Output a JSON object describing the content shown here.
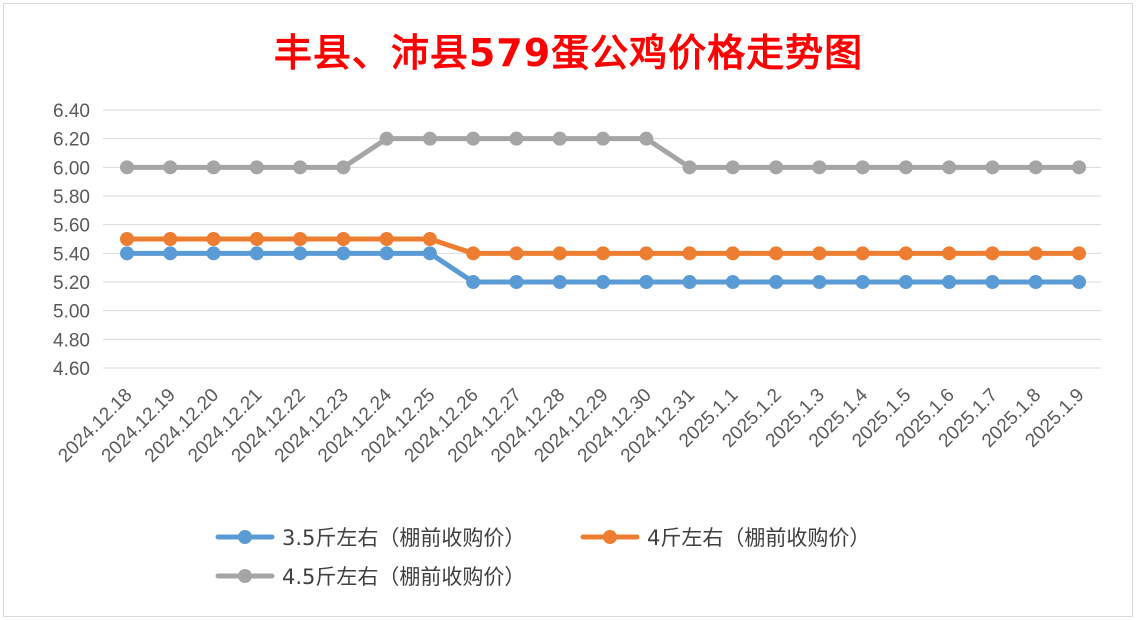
{
  "chart_data": {
    "type": "line",
    "title": "丰县、沛县579蛋公鸡价格走势图",
    "categories": [
      "2024.12.18",
      "2024.12.19",
      "2024.12.20",
      "2024.12.21",
      "2024.12.22",
      "2024.12.23",
      "2024.12.24",
      "2024.12.25",
      "2024.12.26",
      "2024.12.27",
      "2024.12.28",
      "2024.12.29",
      "2024.12.30",
      "2024.12.31",
      "2025.1.1",
      "2025.1.2",
      "2025.1.3",
      "2025.1.4",
      "2025.1.5",
      "2025.1.6",
      "2025.1.7",
      "2025.1.8",
      "2025.1.9"
    ],
    "series": [
      {
        "name": "3.5斤左右（棚前收购价）",
        "color": "#5b9bd5",
        "values": [
          5.4,
          5.4,
          5.4,
          5.4,
          5.4,
          5.4,
          5.4,
          5.4,
          5.2,
          5.2,
          5.2,
          5.2,
          5.2,
          5.2,
          5.2,
          5.2,
          5.2,
          5.2,
          5.2,
          5.2,
          5.2,
          5.2,
          5.2
        ]
      },
      {
        "name": "4斤左右（棚前收购价）",
        "color": "#ed7d31",
        "values": [
          5.5,
          5.5,
          5.5,
          5.5,
          5.5,
          5.5,
          5.5,
          5.5,
          5.4,
          5.4,
          5.4,
          5.4,
          5.4,
          5.4,
          5.4,
          5.4,
          5.4,
          5.4,
          5.4,
          5.4,
          5.4,
          5.4,
          5.4
        ]
      },
      {
        "name": "4.5斤左右（棚前收购价）",
        "color": "#a5a5a5",
        "values": [
          6.0,
          6.0,
          6.0,
          6.0,
          6.0,
          6.0,
          6.2,
          6.2,
          6.2,
          6.2,
          6.2,
          6.2,
          6.2,
          6.0,
          6.0,
          6.0,
          6.0,
          6.0,
          6.0,
          6.0,
          6.0,
          6.0,
          6.0
        ]
      }
    ],
    "y_ticks": [
      "4.60",
      "4.80",
      "5.00",
      "5.20",
      "5.40",
      "5.60",
      "5.80",
      "6.00",
      "6.20",
      "6.40"
    ],
    "ylim": [
      4.6,
      6.4
    ],
    "grid": true,
    "legend_position": "bottom"
  }
}
